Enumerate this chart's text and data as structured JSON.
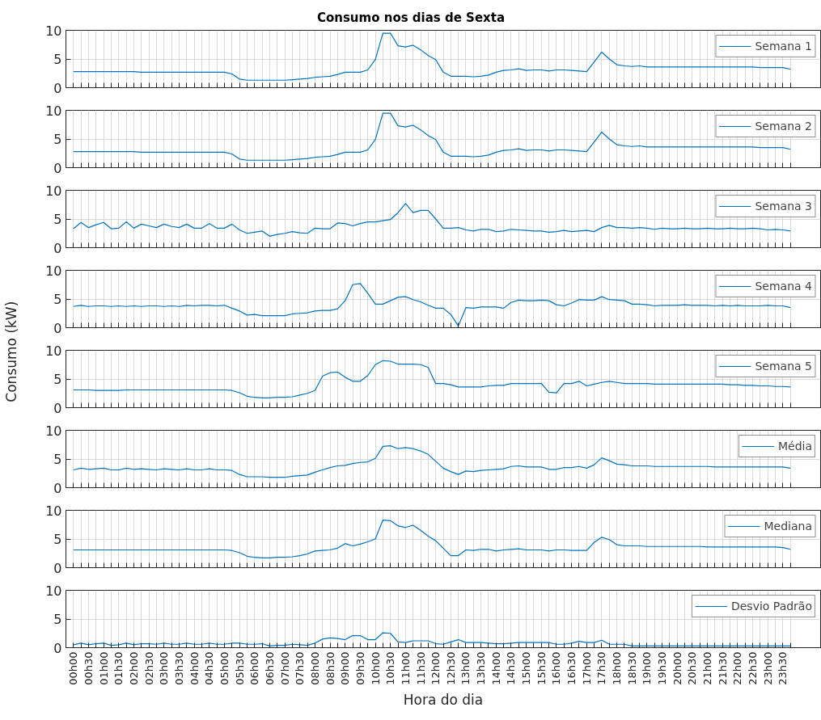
{
  "chart_data": [
    {
      "type": "other",
      "title": "Consumo nos dias de Sexta"
    },
    {
      "type": "other",
      "ylabel": "Consumo (kW)"
    },
    {
      "type": "line",
      "categories": [
        null,
        null,
        null,
        null,
        null,
        null,
        null,
        null,
        null,
        null,
        null,
        null,
        null,
        null,
        null,
        null,
        null,
        null,
        null,
        null,
        null,
        null,
        null,
        null,
        null,
        null,
        null,
        null,
        null,
        null,
        null,
        null,
        null,
        null,
        null,
        null,
        null,
        null,
        null,
        null,
        null,
        null,
        null,
        null,
        null,
        null,
        null,
        null,
        null,
        null,
        null,
        null,
        null,
        null,
        null,
        null,
        null,
        null,
        null,
        null,
        null,
        null,
        null,
        null,
        null,
        null,
        null,
        null,
        null,
        null,
        null,
        null,
        null,
        null,
        null,
        null,
        null,
        null,
        null,
        null,
        null,
        null,
        null,
        null,
        null,
        null,
        null,
        null,
        null,
        null,
        null,
        null,
        null,
        null,
        null,
        null
      ],
      "series": [
        {
          "name": "Semana 1",
          "color": "#0072bd",
          "values": [
            2.8,
            2.8,
            2.8,
            2.8,
            2.8,
            2.8,
            2.8,
            2.8,
            2.8,
            2.7,
            2.7,
            2.7,
            2.7,
            2.7,
            2.7,
            2.7,
            2.7,
            2.7,
            2.7,
            2.7,
            2.7,
            2.4,
            1.5,
            1.3,
            1.3,
            1.3,
            1.3,
            1.3,
            1.3,
            1.4,
            1.5,
            1.6,
            1.8,
            1.9,
            2.0,
            2.3,
            2.7,
            2.7,
            2.7,
            3.1,
            4.9,
            9.5,
            9.5,
            7.3,
            7.1,
            7.4,
            6.6,
            5.6,
            4.9,
            2.7,
            2.0,
            2.0,
            2.0,
            1.9,
            2.0,
            2.2,
            2.7,
            3.0,
            3.1,
            3.3,
            3.0,
            3.1,
            3.1,
            2.9,
            3.1,
            3.1,
            3.0,
            2.9,
            2.8,
            4.5,
            6.2,
            5.0,
            4.0,
            3.8,
            3.7,
            3.8,
            3.6,
            3.6,
            3.6,
            3.6,
            3.6,
            3.6,
            3.6,
            3.6,
            3.6,
            3.6,
            3.6,
            3.6,
            3.6,
            3.6,
            3.6,
            3.5,
            3.5,
            3.5,
            3.5,
            3.2
          ]
        }
      ],
      "ylim": [
        0,
        10
      ],
      "yticks": [
        0,
        5,
        10
      ],
      "grid": true,
      "legend": "top right"
    },
    {
      "type": "line",
      "categories": [
        null,
        null,
        null,
        null,
        null,
        null,
        null,
        null,
        null,
        null,
        null,
        null,
        null,
        null,
        null,
        null,
        null,
        null,
        null,
        null,
        null,
        null,
        null,
        null,
        null,
        null,
        null,
        null,
        null,
        null,
        null,
        null,
        null,
        null,
        null,
        null,
        null,
        null,
        null,
        null,
        null,
        null,
        null,
        null,
        null,
        null,
        null,
        null,
        null,
        null,
        null,
        null,
        null,
        null,
        null,
        null,
        null,
        null,
        null,
        null,
        null,
        null,
        null,
        null,
        null,
        null,
        null,
        null,
        null,
        null,
        null,
        null,
        null,
        null,
        null,
        null,
        null,
        null,
        null,
        null,
        null,
        null,
        null,
        null,
        null,
        null,
        null,
        null,
        null,
        null,
        null,
        null,
        null,
        null,
        null,
        null
      ],
      "series": [
        {
          "name": "Semana 2",
          "color": "#0072bd",
          "values": [
            2.8,
            2.8,
            2.8,
            2.8,
            2.8,
            2.8,
            2.8,
            2.8,
            2.8,
            2.7,
            2.7,
            2.7,
            2.7,
            2.7,
            2.7,
            2.7,
            2.7,
            2.7,
            2.7,
            2.7,
            2.7,
            2.4,
            1.5,
            1.3,
            1.3,
            1.3,
            1.3,
            1.3,
            1.3,
            1.4,
            1.5,
            1.6,
            1.8,
            1.9,
            2.0,
            2.3,
            2.7,
            2.7,
            2.7,
            3.1,
            4.9,
            9.5,
            9.5,
            7.3,
            7.1,
            7.4,
            6.6,
            5.6,
            4.9,
            2.7,
            2.0,
            2.0,
            2.0,
            1.9,
            2.0,
            2.2,
            2.7,
            3.0,
            3.1,
            3.3,
            3.0,
            3.1,
            3.1,
            2.9,
            3.1,
            3.1,
            3.0,
            2.9,
            2.8,
            4.5,
            6.2,
            5.0,
            4.0,
            3.8,
            3.7,
            3.8,
            3.6,
            3.6,
            3.6,
            3.6,
            3.6,
            3.6,
            3.6,
            3.6,
            3.6,
            3.6,
            3.6,
            3.6,
            3.6,
            3.6,
            3.6,
            3.5,
            3.5,
            3.5,
            3.5,
            3.2
          ]
        }
      ],
      "ylim": [
        0,
        10
      ],
      "yticks": [
        0,
        5,
        10
      ],
      "grid": true,
      "legend": "top right"
    },
    {
      "type": "line",
      "categories": [
        null,
        null,
        null,
        null,
        null,
        null,
        null,
        null,
        null,
        null,
        null,
        null,
        null,
        null,
        null,
        null,
        null,
        null,
        null,
        null,
        null,
        null,
        null,
        null,
        null,
        null,
        null,
        null,
        null,
        null,
        null,
        null,
        null,
        null,
        null,
        null,
        null,
        null,
        null,
        null,
        null,
        null,
        null,
        null,
        null,
        null,
        null,
        null,
        null,
        null,
        null,
        null,
        null,
        null,
        null,
        null,
        null,
        null,
        null,
        null,
        null,
        null,
        null,
        null,
        null,
        null,
        null,
        null,
        null,
        null,
        null,
        null,
        null,
        null,
        null,
        null,
        null,
        null,
        null,
        null,
        null,
        null,
        null,
        null,
        null,
        null,
        null,
        null,
        null,
        null,
        null,
        null,
        null,
        null,
        null,
        null
      ],
      "series": [
        {
          "name": "Semana 3",
          "color": "#0072bd",
          "values": [
            3.3,
            4.4,
            3.5,
            4.0,
            4.4,
            3.3,
            3.4,
            4.5,
            3.4,
            4.1,
            3.8,
            3.5,
            4.1,
            3.7,
            3.5,
            4.1,
            3.4,
            3.4,
            4.2,
            3.4,
            3.4,
            4.1,
            3.1,
            2.5,
            2.7,
            2.9,
            2.0,
            2.3,
            2.5,
            2.8,
            2.6,
            2.5,
            3.4,
            3.3,
            3.3,
            4.3,
            4.2,
            3.8,
            4.2,
            4.5,
            4.5,
            4.7,
            4.9,
            6.1,
            7.7,
            6.1,
            6.5,
            6.5,
            5.0,
            3.4,
            3.4,
            3.5,
            3.1,
            2.9,
            3.2,
            3.2,
            2.8,
            2.9,
            3.2,
            3.1,
            3.0,
            2.9,
            2.9,
            2.7,
            2.8,
            3.0,
            2.8,
            2.9,
            3.0,
            2.8,
            3.5,
            3.9,
            3.5,
            3.5,
            3.4,
            3.5,
            3.4,
            3.2,
            3.4,
            3.3,
            3.3,
            3.4,
            3.3,
            3.3,
            3.4,
            3.3,
            3.3,
            3.4,
            3.3,
            3.3,
            3.4,
            3.3,
            3.1,
            3.2,
            3.1,
            2.9
          ]
        }
      ],
      "ylim": [
        0,
        10
      ],
      "yticks": [
        0,
        5,
        10
      ],
      "grid": true,
      "legend": "top right"
    },
    {
      "type": "line",
      "categories": [
        null,
        null,
        null,
        null,
        null,
        null,
        null,
        null,
        null,
        null,
        null,
        null,
        null,
        null,
        null,
        null,
        null,
        null,
        null,
        null,
        null,
        null,
        null,
        null,
        null,
        null,
        null,
        null,
        null,
        null,
        null,
        null,
        null,
        null,
        null,
        null,
        null,
        null,
        null,
        null,
        null,
        null,
        null,
        null,
        null,
        null,
        null,
        null,
        null,
        null,
        null,
        null,
        null,
        null,
        null,
        null,
        null,
        null,
        null,
        null,
        null,
        null,
        null,
        null,
        null,
        null,
        null,
        null,
        null,
        null,
        null,
        null,
        null,
        null,
        null,
        null,
        null,
        null,
        null,
        null,
        null,
        null,
        null,
        null,
        null,
        null,
        null,
        null,
        null,
        null,
        null,
        null,
        null,
        null,
        null,
        null
      ],
      "series": [
        {
          "name": "Semana 4",
          "color": "#0072bd",
          "values": [
            3.7,
            3.9,
            3.7,
            3.8,
            3.8,
            3.7,
            3.8,
            3.7,
            3.8,
            3.7,
            3.8,
            3.8,
            3.7,
            3.8,
            3.7,
            3.9,
            3.8,
            3.9,
            3.9,
            3.8,
            3.9,
            3.4,
            2.9,
            2.2,
            2.3,
            2.1,
            2.1,
            2.1,
            2.1,
            2.4,
            2.5,
            2.6,
            2.9,
            3.0,
            3.0,
            3.3,
            4.7,
            7.5,
            7.7,
            6.0,
            4.1,
            4.1,
            4.7,
            5.3,
            5.4,
            4.9,
            4.5,
            3.9,
            3.4,
            3.4,
            2.3,
            0.3,
            3.5,
            3.4,
            3.6,
            3.6,
            3.6,
            3.4,
            4.4,
            4.8,
            4.7,
            4.7,
            4.8,
            4.7,
            4.0,
            3.8,
            4.3,
            4.9,
            4.8,
            4.8,
            5.4,
            4.9,
            4.8,
            4.7,
            4.1,
            4.1,
            4.0,
            3.8,
            3.9,
            3.9,
            3.9,
            4.0,
            3.9,
            3.9,
            3.9,
            3.8,
            3.9,
            3.8,
            3.9,
            3.8,
            3.8,
            3.8,
            3.9,
            3.8,
            3.8,
            3.5
          ]
        }
      ],
      "ylim": [
        0,
        10
      ],
      "yticks": [
        0,
        5,
        10
      ],
      "grid": true,
      "legend": "top right"
    },
    {
      "type": "line",
      "categories": [
        null,
        null,
        null,
        null,
        null,
        null,
        null,
        null,
        null,
        null,
        null,
        null,
        null,
        null,
        null,
        null,
        null,
        null,
        null,
        null,
        null,
        null,
        null,
        null,
        null,
        null,
        null,
        null,
        null,
        null,
        null,
        null,
        null,
        null,
        null,
        null,
        null,
        null,
        null,
        null,
        null,
        null,
        null,
        null,
        null,
        null,
        null,
        null,
        null,
        null,
        null,
        null,
        null,
        null,
        null,
        null,
        null,
        null,
        null,
        null,
        null,
        null,
        null,
        null,
        null,
        null,
        null,
        null,
        null,
        null,
        null,
        null,
        null,
        null,
        null,
        null,
        null,
        null,
        null,
        null,
        null,
        null,
        null,
        null,
        null,
        null,
        null,
        null,
        null,
        null,
        null,
        null,
        null,
        null,
        null,
        null
      ],
      "series": [
        {
          "name": "Semana 5",
          "color": "#0072bd",
          "values": [
            3.1,
            3.1,
            3.1,
            3.0,
            3.0,
            3.0,
            3.0,
            3.1,
            3.1,
            3.1,
            3.1,
            3.1,
            3.1,
            3.1,
            3.1,
            3.1,
            3.1,
            3.1,
            3.1,
            3.1,
            3.1,
            3.0,
            2.6,
            2.0,
            1.8,
            1.7,
            1.7,
            1.8,
            1.8,
            1.9,
            2.2,
            2.5,
            3.0,
            5.5,
            6.1,
            6.2,
            5.3,
            4.6,
            4.6,
            5.6,
            7.5,
            8.2,
            8.1,
            7.6,
            7.6,
            7.6,
            7.5,
            7.0,
            4.2,
            4.2,
            4.0,
            3.6,
            3.6,
            3.6,
            3.6,
            3.8,
            3.9,
            3.9,
            4.2,
            4.2,
            4.2,
            4.2,
            4.2,
            2.7,
            2.6,
            4.2,
            4.2,
            4.6,
            3.8,
            4.1,
            4.4,
            4.6,
            4.4,
            4.2,
            4.2,
            4.2,
            4.2,
            4.1,
            4.1,
            4.1,
            4.1,
            4.1,
            4.1,
            4.1,
            4.1,
            4.1,
            4.1,
            4.0,
            4.0,
            3.9,
            3.9,
            3.8,
            3.8,
            3.7,
            3.7,
            3.6
          ]
        }
      ],
      "ylim": [
        0,
        10
      ],
      "yticks": [
        0,
        5,
        10
      ],
      "grid": true,
      "legend": "top right"
    },
    {
      "type": "line",
      "categories": [
        null,
        null,
        null,
        null,
        null,
        null,
        null,
        null,
        null,
        null,
        null,
        null,
        null,
        null,
        null,
        null,
        null,
        null,
        null,
        null,
        null,
        null,
        null,
        null,
        null,
        null,
        null,
        null,
        null,
        null,
        null,
        null,
        null,
        null,
        null,
        null,
        null,
        null,
        null,
        null,
        null,
        null,
        null,
        null,
        null,
        null,
        null,
        null,
        null,
        null,
        null,
        null,
        null,
        null,
        null,
        null,
        null,
        null,
        null,
        null,
        null,
        null,
        null,
        null,
        null,
        null,
        null,
        null,
        null,
        null,
        null,
        null,
        null,
        null,
        null,
        null,
        null,
        null,
        null,
        null,
        null,
        null,
        null,
        null,
        null,
        null,
        null,
        null,
        null,
        null,
        null,
        null,
        null,
        null,
        null,
        null
      ],
      "series": [
        {
          "name": "Média",
          "color": "#0072bd",
          "values": [
            3.1,
            3.4,
            3.2,
            3.3,
            3.4,
            3.1,
            3.1,
            3.4,
            3.2,
            3.3,
            3.2,
            3.1,
            3.3,
            3.2,
            3.1,
            3.3,
            3.1,
            3.1,
            3.3,
            3.1,
            3.1,
            3.0,
            2.3,
            1.9,
            1.9,
            1.9,
            1.8,
            1.8,
            1.8,
            2.0,
            2.1,
            2.2,
            2.7,
            3.1,
            3.5,
            3.8,
            3.9,
            4.2,
            4.4,
            4.5,
            5.1,
            7.2,
            7.3,
            6.8,
            7.0,
            6.8,
            6.4,
            5.8,
            4.6,
            3.4,
            2.8,
            2.3,
            2.9,
            2.8,
            3.0,
            3.1,
            3.2,
            3.3,
            3.7,
            3.8,
            3.6,
            3.6,
            3.6,
            3.2,
            3.2,
            3.5,
            3.5,
            3.7,
            3.4,
            4.0,
            5.2,
            4.7,
            4.1,
            4.0,
            3.8,
            3.8,
            3.8,
            3.7,
            3.7,
            3.7,
            3.7,
            3.7,
            3.7,
            3.7,
            3.7,
            3.6,
            3.6,
            3.6,
            3.6,
            3.6,
            3.6,
            3.6,
            3.6,
            3.6,
            3.6,
            3.4
          ]
        }
      ],
      "ylim": [
        0,
        10
      ],
      "yticks": [
        0,
        5,
        10
      ],
      "grid": true,
      "legend": "top right"
    },
    {
      "type": "line",
      "categories": [
        null,
        null,
        null,
        null,
        null,
        null,
        null,
        null,
        null,
        null,
        null,
        null,
        null,
        null,
        null,
        null,
        null,
        null,
        null,
        null,
        null,
        null,
        null,
        null,
        null,
        null,
        null,
        null,
        null,
        null,
        null,
        null,
        null,
        null,
        null,
        null,
        null,
        null,
        null,
        null,
        null,
        null,
        null,
        null,
        null,
        null,
        null,
        null,
        null,
        null,
        null,
        null,
        null,
        null,
        null,
        null,
        null,
        null,
        null,
        null,
        null,
        null,
        null,
        null,
        null,
        null,
        null,
        null,
        null,
        null,
        null,
        null,
        null,
        null,
        null,
        null,
        null,
        null,
        null,
        null,
        null,
        null,
        null,
        null,
        null,
        null,
        null,
        null,
        null,
        null,
        null,
        null,
        null,
        null,
        null,
        null
      ],
      "series": [
        {
          "name": "Mediana",
          "color": "#0072bd",
          "values": [
            3.1,
            3.1,
            3.1,
            3.1,
            3.1,
            3.1,
            3.1,
            3.1,
            3.1,
            3.1,
            3.1,
            3.1,
            3.1,
            3.1,
            3.1,
            3.1,
            3.1,
            3.1,
            3.1,
            3.1,
            3.1,
            3.0,
            2.6,
            2.0,
            1.8,
            1.7,
            1.7,
            1.8,
            1.8,
            1.9,
            2.1,
            2.4,
            2.9,
            3.0,
            3.1,
            3.4,
            4.2,
            3.8,
            4.1,
            4.5,
            5.0,
            8.3,
            8.2,
            7.3,
            7.0,
            7.4,
            6.5,
            5.5,
            4.7,
            3.4,
            2.1,
            2.1,
            3.1,
            3.0,
            3.2,
            3.2,
            2.9,
            3.1,
            3.2,
            3.3,
            3.1,
            3.1,
            3.1,
            2.9,
            3.1,
            3.1,
            3.0,
            3.0,
            3.0,
            4.4,
            5.3,
            4.9,
            4.0,
            3.8,
            3.8,
            3.8,
            3.7,
            3.7,
            3.7,
            3.7,
            3.7,
            3.7,
            3.7,
            3.7,
            3.6,
            3.6,
            3.6,
            3.6,
            3.6,
            3.6,
            3.6,
            3.6,
            3.6,
            3.6,
            3.5,
            3.2
          ]
        }
      ],
      "ylim": [
        0,
        10
      ],
      "yticks": [
        0,
        5,
        10
      ],
      "grid": true,
      "legend": "top right"
    },
    {
      "type": "line",
      "xlabel": "Hora do dia",
      "categories": [
        "00h00",
        null,
        "00h30",
        null,
        "01h00",
        null,
        "01h30",
        null,
        "02h00",
        null,
        "02h30",
        null,
        "03h00",
        null,
        "03h30",
        null,
        "04h00",
        null,
        "04h30",
        null,
        "05h00",
        null,
        "05h30",
        null,
        "06h00",
        null,
        "06h30",
        null,
        "07h00",
        null,
        "07h30",
        null,
        "08h00",
        null,
        "08h30",
        null,
        "09h00",
        null,
        "09h30",
        null,
        "10h00",
        null,
        "10h30",
        null,
        "11h00",
        null,
        "11h30",
        null,
        "12h00",
        null,
        "12h30",
        null,
        "13h00",
        null,
        "13h30",
        null,
        "14h00",
        null,
        "14h30",
        null,
        "15h00",
        null,
        "15h30",
        null,
        "16h00",
        null,
        "16h30",
        null,
        "17h00",
        null,
        "17h30",
        null,
        "18h00",
        null,
        "18h30",
        null,
        "19h00",
        null,
        "19h30",
        null,
        "20h00",
        null,
        "20h30",
        null,
        "21h00",
        null,
        "21h30",
        null,
        "22h00",
        null,
        "22h30",
        null,
        "23h00",
        null,
        "23h30",
        null
      ],
      "series": [
        {
          "name": "Desvio Padrão",
          "color": "#0072bd",
          "values": [
            0.5,
            0.8,
            0.5,
            0.7,
            0.8,
            0.4,
            0.5,
            0.8,
            0.5,
            0.7,
            0.7,
            0.6,
            0.8,
            0.6,
            0.6,
            0.8,
            0.6,
            0.6,
            0.8,
            0.6,
            0.6,
            0.8,
            0.8,
            0.6,
            0.6,
            0.7,
            0.3,
            0.4,
            0.4,
            0.6,
            0.5,
            0.4,
            0.8,
            1.5,
            1.7,
            1.6,
            1.4,
            2.1,
            2.1,
            1.4,
            1.4,
            2.6,
            2.5,
            1.0,
            0.9,
            1.2,
            1.2,
            1.2,
            0.7,
            0.6,
            1.0,
            1.4,
            0.9,
            0.9,
            0.9,
            0.8,
            0.7,
            0.7,
            0.8,
            0.9,
            0.9,
            0.9,
            0.9,
            0.9,
            0.6,
            0.6,
            0.8,
            1.1,
            0.9,
            0.9,
            1.3,
            0.6,
            0.6,
            0.6,
            0.3,
            0.3,
            0.3,
            0.3,
            0.3,
            0.3,
            0.3,
            0.3,
            0.3,
            0.3,
            0.3,
            0.3,
            0.3,
            0.3,
            0.3,
            0.3,
            0.3,
            0.3,
            0.3,
            0.3,
            0.3,
            0.3
          ]
        }
      ],
      "ylim": [
        0,
        10
      ],
      "yticks": [
        0,
        5,
        10
      ],
      "grid": true,
      "legend": "top right"
    }
  ]
}
